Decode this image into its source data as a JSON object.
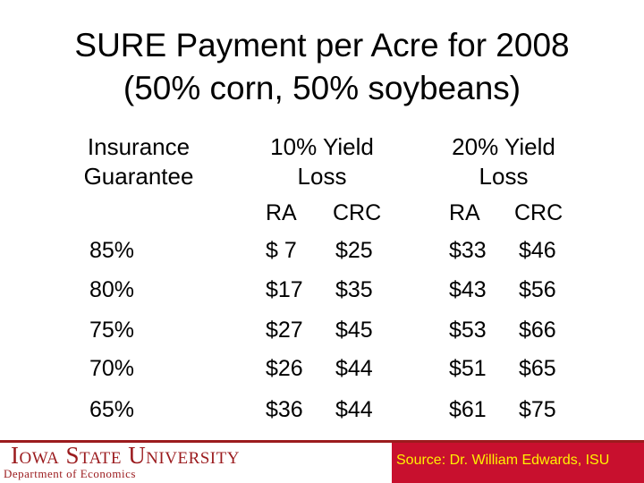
{
  "title": [
    "SURE Payment per Acre for 2008",
    "(50% corn, 50% soybeans)"
  ],
  "table": {
    "columns": [
      "Insurance Guarantee",
      "10% Yield Loss",
      "20% Yield Loss"
    ],
    "subcolumns": [
      "RA",
      "CRC",
      "RA",
      "CRC"
    ],
    "rows": [
      [
        "85%",
        "$ 7",
        "$25",
        "$33",
        "$46"
      ],
      [
        "80%",
        "$17",
        "$35",
        "$43",
        "$56"
      ],
      [
        "75%",
        "$27",
        "$45",
        "$53",
        "$66"
      ],
      [
        "70%",
        "$26",
        "$44",
        "$51",
        "$65"
      ],
      [
        "65%",
        "$36",
        "$44",
        "$61",
        "$75"
      ]
    ]
  },
  "footer": {
    "university": "Iowa State University",
    "department": "Department of Economics",
    "source": "Source: Dr. William Edwards, ISU"
  }
}
